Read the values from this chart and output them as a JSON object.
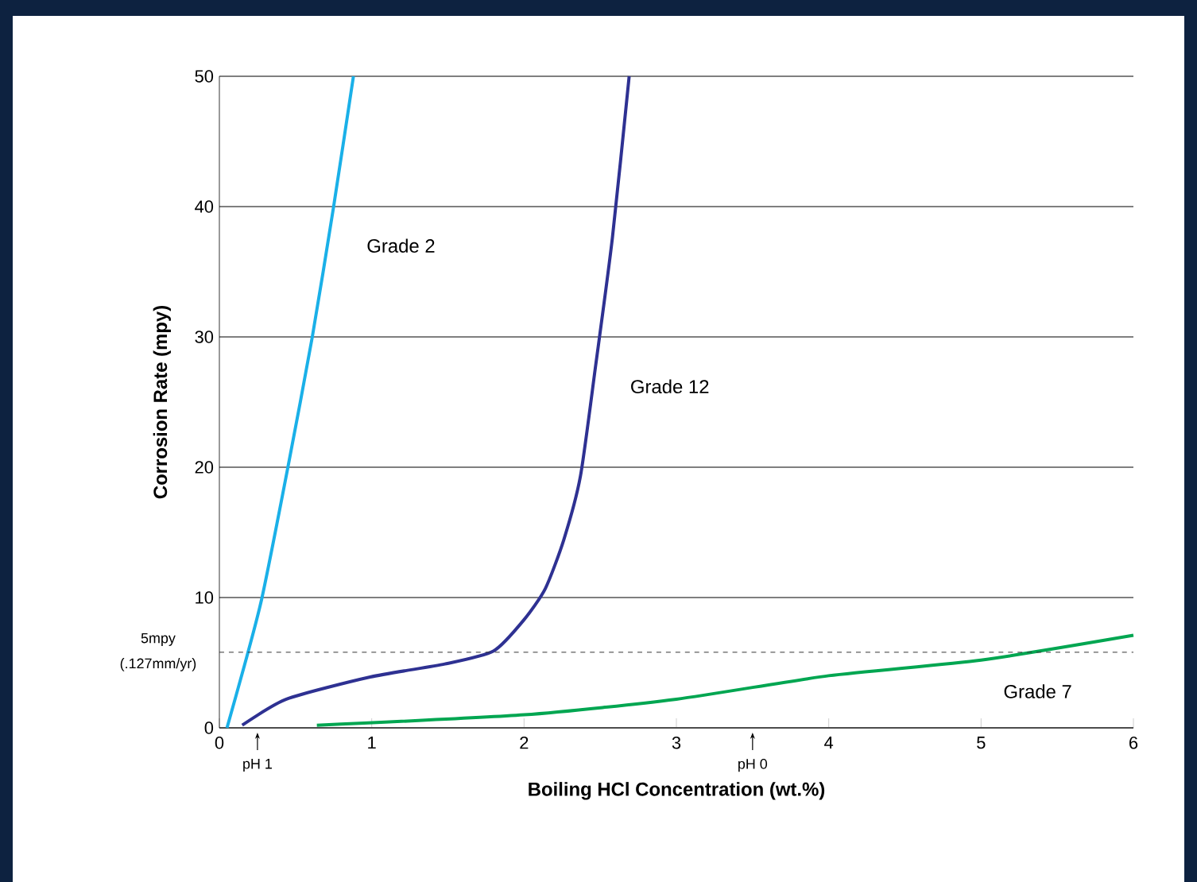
{
  "chart_data": {
    "type": "line",
    "xlabel": "Boiling HCl Concentration (wt.%)",
    "ylabel": "Corrosion Rate (mpy)",
    "xlim": [
      0,
      6
    ],
    "ylim": [
      0,
      50
    ],
    "xticks": [
      0,
      1,
      2,
      3,
      4,
      5,
      6
    ],
    "yticks": [
      0,
      10,
      20,
      30,
      40,
      50
    ],
    "grid": "y",
    "legend": false,
    "marker": "none",
    "line_style": "solid",
    "series": [
      {
        "name": "Grade 2",
        "color": "#1ab0e8",
        "x": [
          0.05,
          0.16,
          0.28,
          0.45,
          0.61,
          0.75,
          0.88
        ],
        "values": [
          0,
          4.6,
          10,
          20,
          30,
          40,
          50
        ]
      },
      {
        "name": "Grade 12",
        "color": "#2e3192",
        "x": [
          0.15,
          0.44,
          0.99,
          1.48,
          1.8,
          2.0,
          2.14,
          2.26,
          2.37,
          2.47,
          2.58,
          2.69
        ],
        "values": [
          0.2,
          2.2,
          3.9,
          4.9,
          5.9,
          8.3,
          10.7,
          14.4,
          19.3,
          27.8,
          37.6,
          50
        ]
      },
      {
        "name": "Grade 7",
        "color": "#00a651",
        "x": [
          0.64,
          2.0,
          3.0,
          4.0,
          5.0,
          6.0
        ],
        "values": [
          0.2,
          1.0,
          2.2,
          4.0,
          5.2,
          7.1
        ]
      }
    ],
    "ref_lines": [
      {
        "axis": "y",
        "value": 5.8,
        "label": "5mpy (.127mm/yr)",
        "color": "#333333",
        "line_style": "dashed"
      }
    ],
    "annotations": [
      "pH 1",
      "pH 0"
    ]
  }
}
